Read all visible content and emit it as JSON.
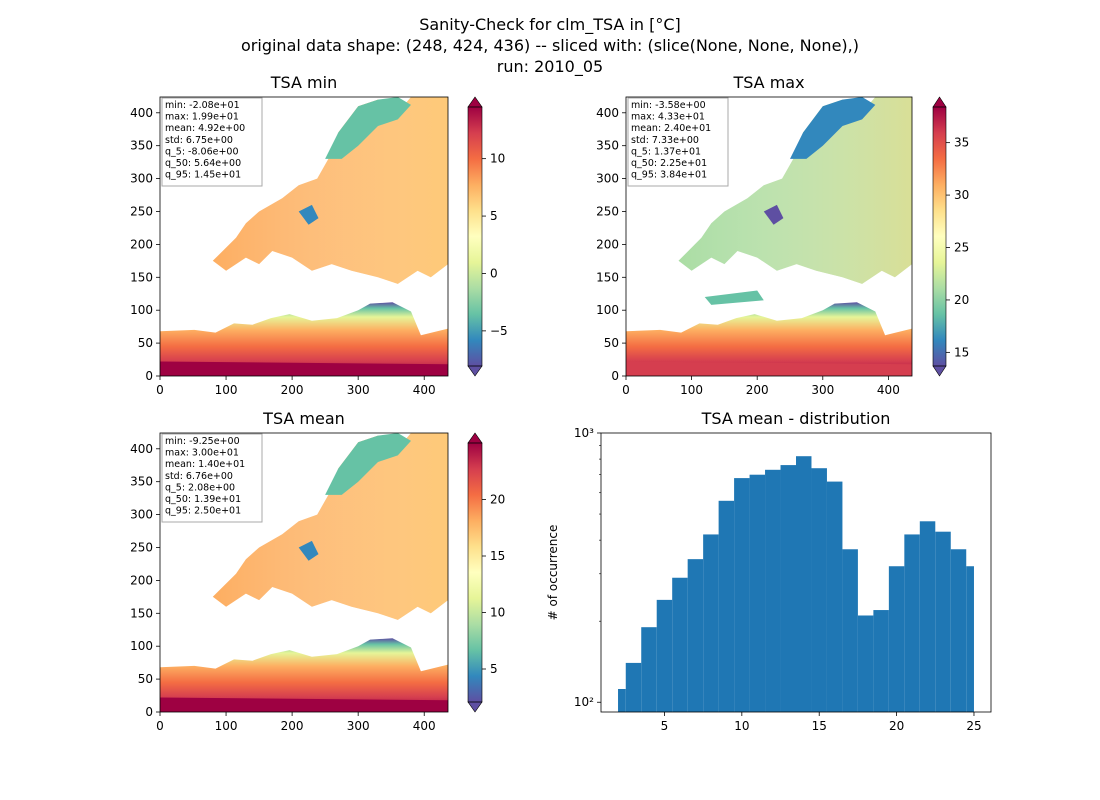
{
  "figure": {
    "title_lines": [
      "Sanity-Check for clm_TSA in [°C]",
      "original data shape: (248, 424, 436) -- sliced with: (slice(None, None, None),)",
      "run: 2010_05"
    ]
  },
  "chart_data": [
    {
      "type": "heatmap",
      "title": "TSA min",
      "xlim": [
        0,
        436
      ],
      "ylim": [
        0,
        424
      ],
      "x_ticks": [
        0,
        100,
        200,
        300,
        400
      ],
      "y_ticks": [
        0,
        50,
        100,
        150,
        200,
        250,
        300,
        350,
        400
      ],
      "colormap": "Spectral_r",
      "colorbar": {
        "range": [
          -8.06,
          14.5
        ],
        "ticks": [
          -5,
          0,
          5,
          10
        ]
      },
      "stats": [
        "min: -2.08e+01",
        "max: 1.99e+01",
        "mean: 4.92e+00",
        "std: 6.75e+00",
        "q_5: -8.06e+00",
        "q_50: 5.64e+00",
        "q_95: 1.45e+01"
      ]
    },
    {
      "type": "heatmap",
      "title": "TSA max",
      "xlim": [
        0,
        436
      ],
      "ylim": [
        0,
        424
      ],
      "x_ticks": [
        0,
        100,
        200,
        300,
        400
      ],
      "y_ticks": [
        0,
        50,
        100,
        150,
        200,
        250,
        300,
        350,
        400
      ],
      "colormap": "Spectral_r",
      "colorbar": {
        "range": [
          13.7,
          38.4
        ],
        "ticks": [
          15,
          20,
          25,
          30,
          35
        ]
      },
      "stats": [
        "min: -3.58e+00",
        "max: 4.33e+01",
        "mean: 2.40e+01",
        "std: 7.33e+00",
        "q_5: 1.37e+01",
        "q_50: 2.25e+01",
        "q_95: 3.84e+01"
      ]
    },
    {
      "type": "heatmap",
      "title": "TSA mean",
      "xlim": [
        0,
        436
      ],
      "ylim": [
        0,
        424
      ],
      "x_ticks": [
        0,
        100,
        200,
        300,
        400
      ],
      "y_ticks": [
        0,
        50,
        100,
        150,
        200,
        250,
        300,
        350,
        400
      ],
      "colormap": "Spectral_r",
      "colorbar": {
        "range": [
          2.08,
          25.0
        ],
        "ticks": [
          5,
          10,
          15,
          20
        ]
      },
      "stats": [
        "min: -9.25e+00",
        "max: 3.00e+01",
        "mean: 1.40e+01",
        "std: 6.76e+00",
        "q_5: 2.08e+00",
        "q_50: 1.39e+01",
        "q_95: 2.50e+01"
      ]
    },
    {
      "type": "bar",
      "title": "TSA mean - distribution",
      "ylabel": "# of occurrence",
      "yscale": "log",
      "xlim": [
        0.9,
        26.1
      ],
      "ylim": [
        92,
        1000
      ],
      "x_ticks": [
        5,
        10,
        15,
        20,
        25
      ],
      "y_ticks": [
        100,
        1000
      ],
      "y_tick_labels": [
        "10²",
        "10³"
      ],
      "bar_color": "#1f77b4",
      "bins": {
        "x": [
          2,
          3,
          4,
          5,
          6,
          7,
          8,
          9,
          10,
          11,
          12,
          13,
          14,
          15,
          16,
          17,
          18,
          19,
          20,
          21,
          22,
          23,
          24,
          25
        ],
        "y": [
          112,
          140,
          190,
          240,
          290,
          340,
          420,
          560,
          680,
          700,
          730,
          760,
          820,
          740,
          660,
          370,
          210,
          220,
          320,
          420,
          470,
          430,
          370,
          320
        ]
      }
    }
  ]
}
